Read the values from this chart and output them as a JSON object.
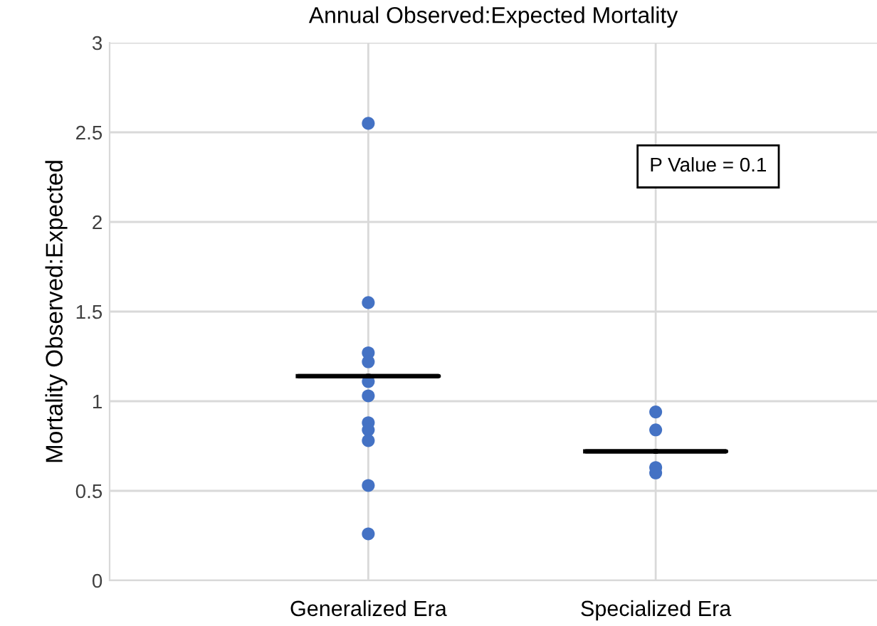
{
  "chart_data": {
    "type": "scatter",
    "title": "Annual Observed:Expected Mortality",
    "ylabel": "Mortality Observed:Expected",
    "categories": [
      "Generalized Era",
      "Specialized Era"
    ],
    "series": [
      {
        "color": "#4472c4",
        "marker": "circle",
        "x": [
          "Generalized Era",
          "Generalized Era",
          "Generalized Era",
          "Generalized Era",
          "Generalized Era",
          "Generalized Era",
          "Generalized Era",
          "Generalized Era",
          "Generalized Era",
          "Generalized Era",
          "Generalized Era",
          "Specialized Era",
          "Specialized Era",
          "Specialized Era",
          "Specialized Era"
        ],
        "values": [
          2.55,
          1.55,
          1.27,
          1.22,
          1.11,
          1.03,
          0.88,
          0.84,
          0.78,
          0.53,
          0.26,
          0.94,
          0.84,
          0.63,
          0.6
        ]
      },
      {
        "type": "box",
        "color": "#000000",
        "boxes": [
          {
            "low": 1.14,
            "q1": 1.14,
            "median": 1.14,
            "q3": 1.14,
            "high": 1.14
          },
          {
            "low": 0.72,
            "q1": 0.72,
            "median": 0.72,
            "q3": 0.72,
            "high": 0.72
          }
        ]
      }
    ],
    "ylim": [
      0,
      3
    ],
    "yticks": [
      0,
      0.5,
      1,
      1.5,
      2,
      2.5,
      3
    ],
    "grid": true,
    "annotations": [
      "P Value = 0.1"
    ]
  }
}
